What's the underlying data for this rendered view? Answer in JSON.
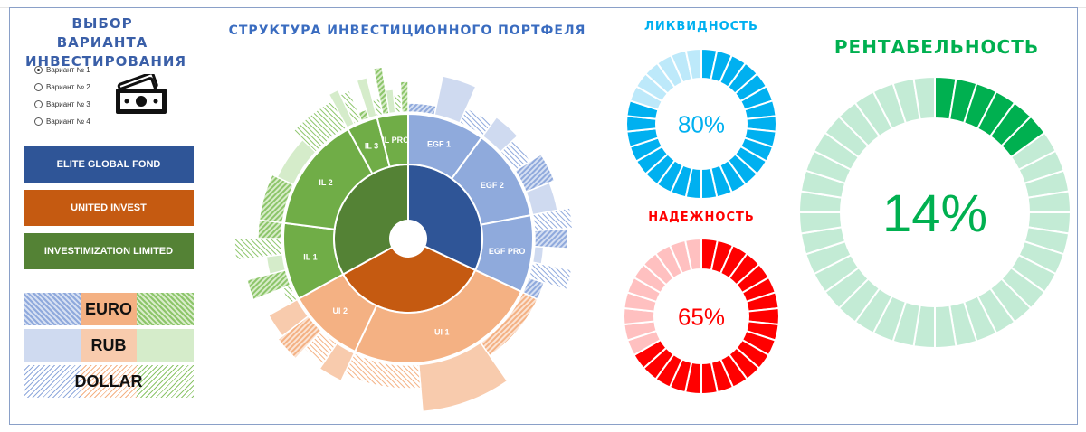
{
  "selector_title": "ВЫБОР ВАРИАНТА ИНВЕСТИРОВАНИЯ",
  "variants": [
    {
      "label": "Вариант № 1",
      "selected": true
    },
    {
      "label": "Вариант № 2",
      "selected": false
    },
    {
      "label": "Вариант № 3",
      "selected": false
    },
    {
      "label": "Вариант № 4",
      "selected": false
    }
  ],
  "funds": [
    {
      "label": "ELITE GLOBAL FOND",
      "color": "#2f5597"
    },
    {
      "label": "UNITED INVEST",
      "color": "#c55a11"
    },
    {
      "label": "INVESTIMIZATION LIMITED",
      "color": "#548235"
    }
  ],
  "currencies": [
    "EURO",
    "RUB",
    "DOLLAR"
  ],
  "portfolio_title": "СТРУКТУРА ИНВЕСТИЦИОННОГО ПОРТФЕЛЯ",
  "liquidity": {
    "title": "ЛИКВИДНОСТЬ",
    "value_text": "80%",
    "value": 0.8,
    "color": "#00b0f0",
    "light": "#bde9fa"
  },
  "reliability": {
    "title": "НАДЕЖНОСТЬ",
    "value_text": "65%",
    "value": 0.65,
    "color": "#ff0000",
    "light": "#ffc0c0"
  },
  "profitability": {
    "title": "РЕНТАБЕЛЬНОСТЬ",
    "value_text": "14%",
    "value": 0.14,
    "color": "#00b050",
    "light": "#c3ebd5"
  },
  "chart_data": {
    "type": "sunburst",
    "title": "СТРУКТУРА ИНВЕСТИЦИОННОГО ПОРТФЕЛЯ",
    "rings": {
      "inner": [
        {
          "name": "ELITE GLOBAL FOND",
          "value": 32
        },
        {
          "name": "UNITED INVEST",
          "value": 35
        },
        {
          "name": "INVESTIMIZATION LIMITED",
          "value": 33
        }
      ],
      "middle": [
        {
          "name": "EGF 1",
          "parent": "ELITE GLOBAL FOND",
          "value": 10
        },
        {
          "name": "EGF 2",
          "parent": "ELITE GLOBAL FOND",
          "value": 12
        },
        {
          "name": "EGF PRO",
          "parent": "ELITE GLOBAL FOND",
          "value": 10
        },
        {
          "name": "UI 1",
          "parent": "UNITED INVEST",
          "value": 25
        },
        {
          "name": "UI 2",
          "parent": "UNITED INVEST",
          "value": 10
        },
        {
          "name": "IL 1",
          "parent": "INVESTIMIZATION LIMITED",
          "value": 10
        },
        {
          "name": "IL 2",
          "parent": "INVESTIMIZATION LIMITED",
          "value": 15
        },
        {
          "name": "IL 3",
          "parent": "INVESTIMIZATION LIMITED",
          "value": 4
        },
        {
          "name": "IL PRO",
          "parent": "INVESTIMIZATION LIMITED",
          "value": 4
        }
      ],
      "outer_currencies": [
        "EURO",
        "RUB",
        "DOLLAR"
      ]
    }
  }
}
